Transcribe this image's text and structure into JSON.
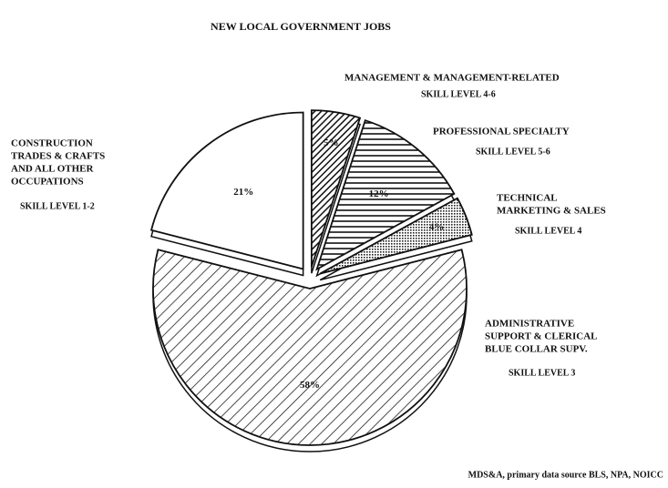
{
  "chart_data": {
    "type": "pie",
    "title": "NEW LOCAL GOVERNMENT JOBS",
    "categories": [
      [
        "MANAGEMENT & MANAGEMENT-RELATED"
      ],
      [
        "PROFESSIONAL SPECIALTY"
      ],
      [
        "TECHNICAL",
        "MARKETING & SALES"
      ],
      [
        "ADMINISTRATIVE",
        "SUPPORT & CLERICAL",
        "BLUE COLLAR SUPV."
      ],
      [
        "CONSTRUCTION",
        "TRADES & CRAFTS",
        "AND ALL OTHER",
        "OCCUPATIONS"
      ]
    ],
    "skill_levels": [
      "SKILL LEVEL 4-6",
      "SKILL LEVEL 5-6",
      "SKILL LEVEL 4",
      "SKILL LEVEL 3",
      "SKILL LEVEL 1-2"
    ],
    "values": [
      5,
      12,
      4,
      58,
      21
    ],
    "value_labels": [
      "5%",
      "12%",
      "4%",
      "58%",
      "21%"
    ],
    "source": "MDS&A, primary data source BLS, NPA, NOICC"
  }
}
